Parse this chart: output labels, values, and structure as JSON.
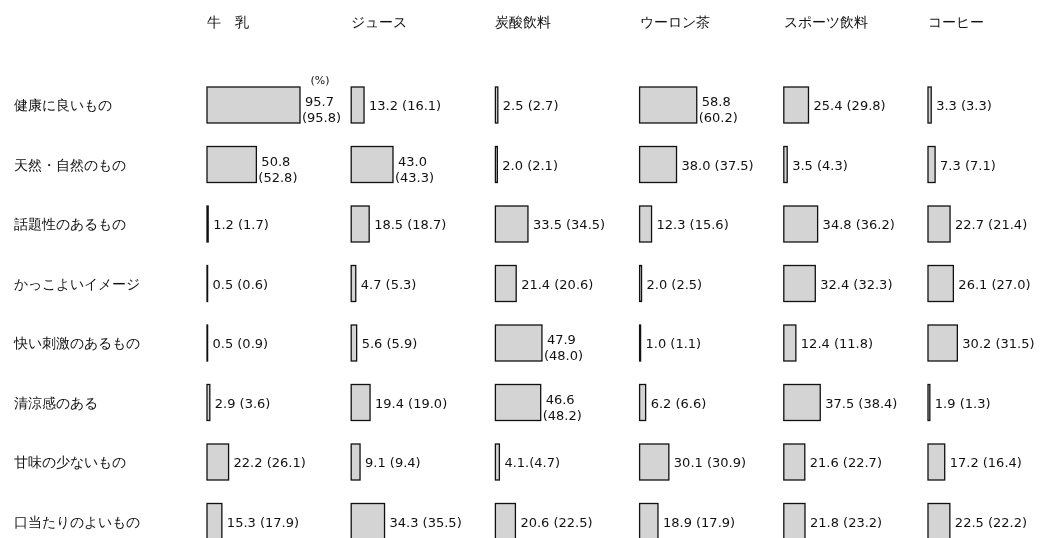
{
  "chart_data": [
    {
      "type": "bar",
      "orientation": "horizontal",
      "title": "牛　乳",
      "tick_labels": "y",
      "color": "#d4d4d4",
      "annotations": [
        "(%)"
      ],
      "categories": [
        "健康に良いもの",
        "天然・自然のもの",
        "話題性のあるもの",
        "かっこよいイメージ",
        "快い刺激のあるもの",
        "清涼感のある",
        "甘味の少ないもの",
        "口当たりのよいもの"
      ],
      "values": [
        95.7,
        50.8,
        1.2,
        0.5,
        0.5,
        2.9,
        22.2,
        15.3
      ],
      "value_labels": [
        "95.7 (95.8)",
        "50.8 (52.8)",
        "1.2 (1.7)",
        "0.5 (0.6)",
        "0.5 (0.9)",
        "2.9 (3.6)",
        "22.2 (26.1)",
        "15.3 (17.9)"
      ]
    },
    {
      "type": "bar",
      "orientation": "horizontal",
      "title": "ジュース",
      "tick_labels": false,
      "color": "#d4d4d4",
      "categories": [
        null,
        null,
        null,
        null,
        null,
        null,
        null,
        null
      ],
      "values": [
        13.2,
        43.0,
        18.5,
        4.7,
        5.6,
        19.4,
        9.1,
        34.3
      ],
      "value_labels": [
        "13.2 (16.1)",
        "43.0 (43.3)",
        "18.5 (18.7)",
        "4.7 (5.3)",
        "5.6 (5.9)",
        "19.4 (19.0)",
        "9.1 (9.4)",
        "34.3 (35.5)"
      ]
    },
    {
      "type": "bar",
      "orientation": "horizontal",
      "title": "炭酸飲料",
      "tick_labels": false,
      "color": "#d4d4d4",
      "categories": [
        null,
        null,
        null,
        null,
        null,
        null,
        null,
        null
      ],
      "values": [
        2.5,
        2.0,
        33.5,
        21.4,
        47.9,
        46.6,
        4.1,
        20.6
      ],
      "value_labels": [
        "2.5 (2.7)",
        "2.0 (2.1)",
        "33.5 (34.5)",
        "21.4 (20.6)",
        "47.9 (48.0)",
        "46.6 (48.2)",
        "4.1.(4.7)",
        "20.6 (22.5)"
      ]
    },
    {
      "type": "bar",
      "orientation": "horizontal",
      "title": "ウーロン茶",
      "tick_labels": false,
      "color": "#d4d4d4",
      "categories": [
        null,
        null,
        null,
        null,
        null,
        null,
        null,
        null
      ],
      "values": [
        58.8,
        38.0,
        12.3,
        2.0,
        1.0,
        6.2,
        30.1,
        18.9
      ],
      "value_labels": [
        "58.8 (60.2)",
        "38.0 (37.5)",
        "12.3 (15.6)",
        "2.0 (2.5)",
        "1.0 (1.1)",
        "6.2 (6.6)",
        "30.1 (30.9)",
        "18.9 (17.9)"
      ]
    },
    {
      "type": "bar",
      "orientation": "horizontal",
      "title": "スポーツ飲料",
      "tick_labels": false,
      "color": "#d4d4d4",
      "categories": [
        null,
        null,
        null,
        null,
        null,
        null,
        null,
        null
      ],
      "values": [
        25.4,
        3.5,
        34.8,
        32.4,
        12.4,
        37.5,
        21.6,
        21.8
      ],
      "value_labels": [
        "25.4 (29.8)",
        "3.5 (4.3)",
        "34.8 (36.2)",
        "32.4 (32.3)",
        "12.4 (11.8)",
        "37.5 (38.4)",
        "21.6 (22.7)",
        "21.8 (23.2)"
      ]
    },
    {
      "type": "bar",
      "orientation": "horizontal",
      "title": "コーヒー",
      "tick_labels": false,
      "color": "#d4d4d4",
      "categories": [
        null,
        null,
        null,
        null,
        null,
        null,
        null,
        null
      ],
      "values": [
        3.3,
        7.3,
        22.7,
        26.1,
        30.2,
        1.9,
        17.2,
        22.5
      ],
      "value_labels": [
        "3.3 (3.3)",
        "7.3 (7.1)",
        "22.7 (21.4)",
        "26.1 (27.0)",
        "30.2 (31.5)",
        "1.9 (1.3)",
        "17.2 (16.4)",
        "22.5 (22.2)"
      ]
    }
  ]
}
